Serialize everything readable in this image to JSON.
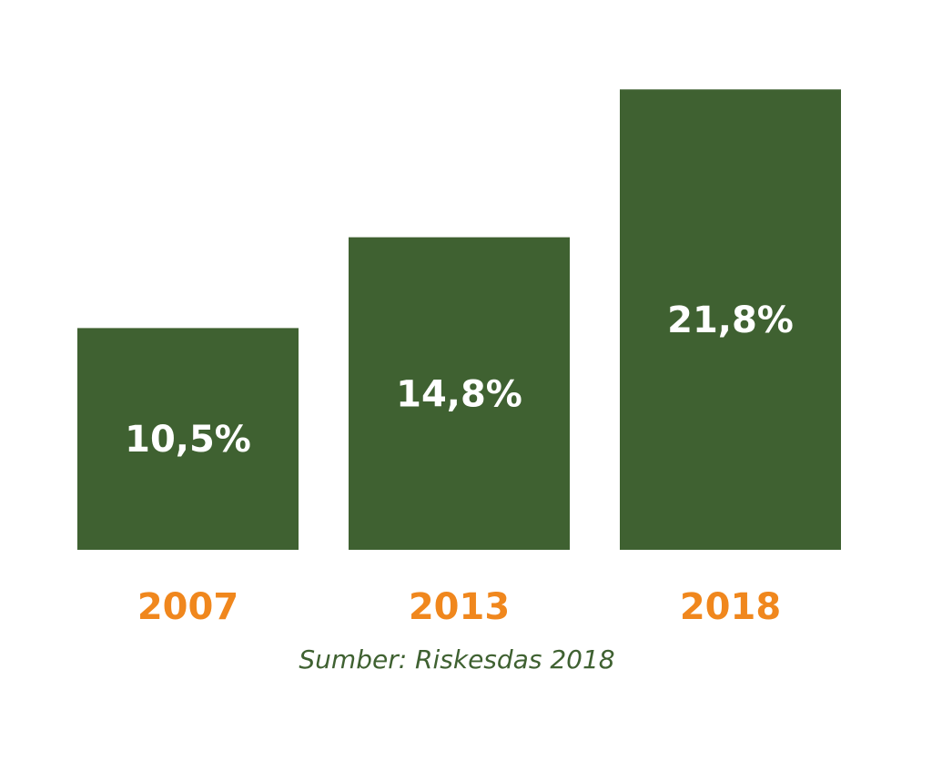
{
  "chart_data": {
    "type": "bar",
    "categories": [
      "2007",
      "2013",
      "2018"
    ],
    "values": [
      10.5,
      14.8,
      21.8
    ],
    "value_labels": [
      "10,5%",
      "14,8%",
      "21,8%"
    ],
    "unit": "%",
    "title": "",
    "xlabel": "",
    "ylabel": "",
    "ylim": [
      0,
      22
    ],
    "grid": false,
    "legend": "none",
    "source": "Sumber: Riskesdas 2018"
  },
  "colors": {
    "bar": "#3f6131",
    "category_label": "#f0871d",
    "value_label": "#ffffff",
    "source": "#3f6131",
    "background": "#ffffff"
  }
}
